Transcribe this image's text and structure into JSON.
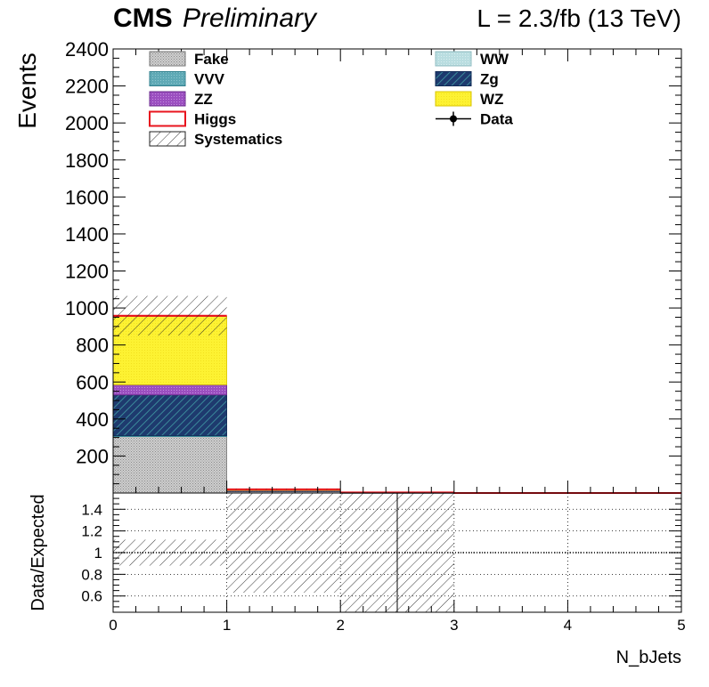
{
  "header": {
    "cms": "CMS",
    "preliminary": "Preliminary",
    "lumi": "L = 2.3/fb (13 TeV)"
  },
  "colors": {
    "Fake": "#c8c8c8",
    "VVV": "#5fa9b5",
    "ZZ": "#9b4fc0",
    "Higgs": "#e8141e",
    "WW": "#b9dde0",
    "Zg": "#1e3a6e",
    "WZ": "#fdf232",
    "Data": "#000000"
  },
  "legend": [
    {
      "key": "Fake",
      "label": "Fake",
      "style": "fill-hatch"
    },
    {
      "key": "VVV",
      "label": "VVV",
      "style": "fill"
    },
    {
      "key": "ZZ",
      "label": "ZZ",
      "style": "fill"
    },
    {
      "key": "Higgs",
      "label": "Higgs",
      "style": "outline"
    },
    {
      "key": "Systematics",
      "label": "Systematics",
      "style": "hatch"
    },
    {
      "key": "WW",
      "label": "WW",
      "style": "fill"
    },
    {
      "key": "Zg",
      "label": "Zg",
      "style": "fill-hatch"
    },
    {
      "key": "WZ",
      "label": "WZ",
      "style": "fill"
    },
    {
      "key": "Data",
      "label": "Data",
      "style": "marker"
    }
  ],
  "chart_data": [
    {
      "type": "bar",
      "subtype": "stacked-histogram",
      "ylabel": "Events",
      "xlim": [
        0,
        5
      ],
      "ylim": [
        0,
        2400
      ],
      "yticks": [
        200,
        400,
        600,
        800,
        1000,
        1200,
        1400,
        1600,
        1800,
        2000,
        2200,
        2400
      ],
      "bin_edges": [
        0,
        1,
        2,
        3,
        4,
        5
      ],
      "stack_order": [
        "Fake",
        "VVV",
        "Zg",
        "ZZ",
        "WZ",
        "WW",
        "Higgs"
      ],
      "series": [
        {
          "name": "Fake",
          "values": [
            305,
            8,
            1,
            0,
            0
          ]
        },
        {
          "name": "VVV",
          "values": [
            5,
            0,
            0,
            0,
            0
          ]
        },
        {
          "name": "Zg",
          "values": [
            220,
            4,
            1,
            0,
            0
          ]
        },
        {
          "name": "ZZ",
          "values": [
            55,
            2,
            0,
            0,
            0
          ]
        },
        {
          "name": "WZ",
          "values": [
            370,
            6,
            1,
            0,
            0
          ]
        },
        {
          "name": "WW",
          "values": [
            0,
            0,
            0,
            0,
            0
          ]
        },
        {
          "name": "Higgs",
          "values": [
            3,
            0,
            0,
            0,
            0
          ]
        }
      ],
      "systematics_upper": [
        1065,
        22,
        4,
        0,
        0
      ],
      "data": []
    },
    {
      "type": "scatter",
      "subtype": "ratio",
      "xlabel": "N_bJets",
      "ylabel": "Data/Expected",
      "xlim": [
        0,
        5
      ],
      "ylim": [
        0.45,
        1.55
      ],
      "yticks": [
        0.6,
        0.8,
        1,
        1.2,
        1.4
      ],
      "xticks": [
        0,
        1,
        2,
        3,
        4,
        5
      ],
      "reference_line": 1,
      "grid": true,
      "uncertainty_band": [
        {
          "x": [
            0,
            1
          ],
          "low": 0.88,
          "high": 1.12
        },
        {
          "x": [
            1,
            2
          ],
          "low": 0.63,
          "high": 1.55
        },
        {
          "x": [
            2,
            2.5
          ],
          "low": 0.45,
          "high": 1.55
        },
        {
          "x": [
            2.5,
            3
          ],
          "low": 0.45,
          "high": 1.55
        }
      ],
      "marker_line_x": 2.5,
      "points": []
    }
  ]
}
